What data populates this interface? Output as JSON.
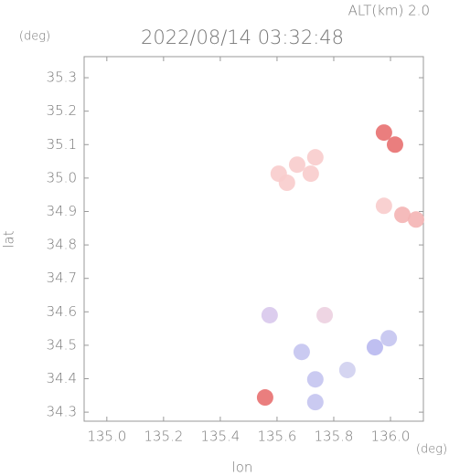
{
  "chart_data": {
    "type": "scatter",
    "title": "2022/08/14 03:32:48",
    "subtitle": "ALT(km) 2.0",
    "y_unit": "(deg)",
    "x_unit": "(deg)",
    "x_label": "lon",
    "y_label": "lat",
    "x": [
      135.606,
      135.671,
      135.735,
      135.635,
      135.719,
      136.042,
      136.09,
      135.977,
      135.977,
      136.016,
      135.574,
      135.768,
      135.687,
      135.735,
      135.735,
      135.945,
      135.994,
      135.848,
      135.558
    ],
    "values": [
      35.013,
      35.04,
      35.062,
      34.986,
      35.013,
      34.89,
      34.876,
      34.917,
      35.136,
      35.1,
      34.59,
      34.59,
      34.48,
      34.398,
      34.33,
      34.494,
      34.521,
      34.426,
      34.344
    ],
    "colors": [
      "#f8cccc",
      "#f8cccc",
      "#f8cccc",
      "#f8cccc",
      "#f8cccc",
      "#f4b4b4",
      "#f4b4b4",
      "#f8cccc",
      "#e87070",
      "#e87070",
      "#d8c8ec",
      "#ecd0e0",
      "#c4c4f0",
      "#c4c4f0",
      "#c4c4f0",
      "#b8b8f0",
      "#c4c4f0",
      "#d0d0f0",
      "#e87070"
    ],
    "xlim": [
      134.92,
      136.116
    ],
    "ylim": [
      34.273,
      35.363
    ],
    "xticks": [
      {
        "value": 135,
        "label": "135.0"
      },
      135.2,
      135.4,
      135.6,
      135.8,
      {
        "value": 136,
        "label": "136.0"
      }
    ],
    "yticks": [
      34.3,
      34.4,
      34.5,
      34.6,
      34.7,
      34.8,
      34.9,
      {
        "value": 35,
        "label": "35.0"
      },
      35.1,
      35.2,
      35.3
    ],
    "grid": false
  }
}
